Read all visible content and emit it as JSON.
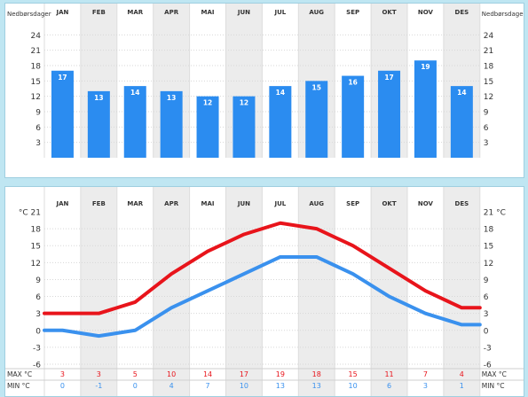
{
  "chart_data": [
    {
      "type": "bar",
      "categories": [
        "JAN",
        "FEB",
        "MAR",
        "APR",
        "MAI",
        "JUN",
        "JUL",
        "AUG",
        "SEP",
        "OKT",
        "NOV",
        "DES"
      ],
      "series": [
        {
          "values": [
            17,
            13,
            14,
            13,
            12,
            12,
            14,
            15,
            16,
            17,
            19,
            14
          ]
        }
      ],
      "ylabel": "Nedbørsdager",
      "ylabel_right": "Nedbørsdager",
      "ylim": [
        0,
        27
      ],
      "yticks": [
        3,
        6,
        9,
        12,
        15,
        18,
        21,
        24
      ],
      "grid": true,
      "bar_color": "#2b8cf0",
      "label_color": "#ffffff"
    },
    {
      "type": "line",
      "categories": [
        "JAN",
        "FEB",
        "MAR",
        "APR",
        "MAI",
        "JUN",
        "JUL",
        "AUG",
        "SEP",
        "OKT",
        "NOV",
        "DES"
      ],
      "series": [
        {
          "key": "max",
          "color": "#e8141b",
          "values": [
            3,
            3,
            5,
            10,
            14,
            17,
            19,
            18,
            15,
            11,
            7,
            4
          ]
        },
        {
          "key": "min",
          "color": "#3a91ee",
          "values": [
            0,
            -1,
            0,
            4,
            7,
            10,
            13,
            13,
            10,
            6,
            3,
            1
          ]
        }
      ],
      "ylim": [
        -6,
        21
      ],
      "yticks": [
        -6,
        -3,
        0,
        3,
        6,
        9,
        12,
        15,
        18
      ],
      "top_label_left": "°C 21",
      "top_label_right": "21 °C",
      "row_labels": {
        "max": "MAX °C",
        "min": "MIN °C"
      },
      "row_labels_right": {
        "max": "MAX °C",
        "min": "MIN °C"
      },
      "grid": true
    }
  ]
}
